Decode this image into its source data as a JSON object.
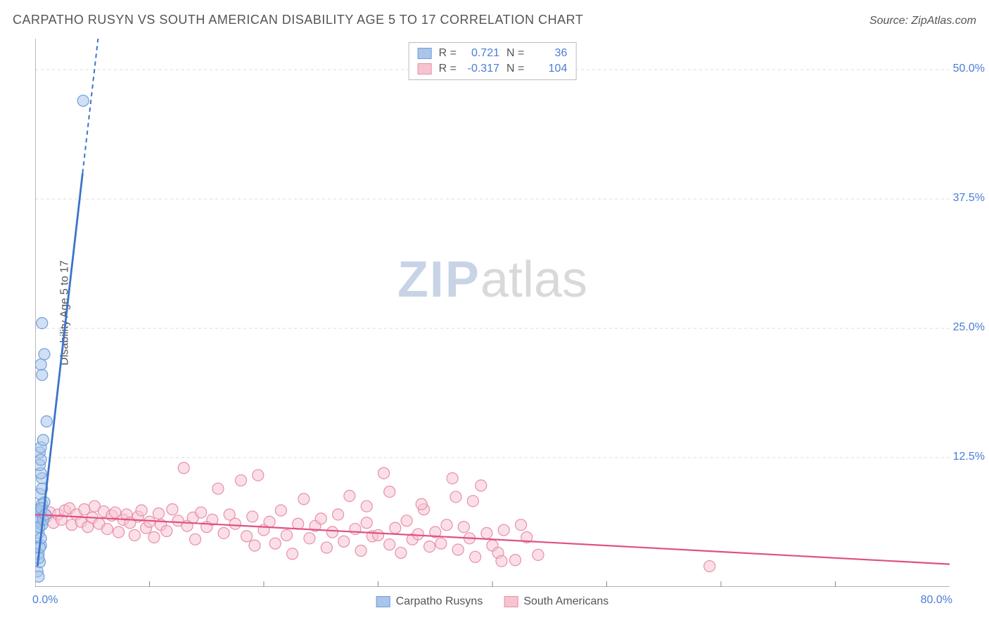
{
  "header": {
    "title": "CARPATHO RUSYN VS SOUTH AMERICAN DISABILITY AGE 5 TO 17 CORRELATION CHART",
    "source": "Source: ZipAtlas.com"
  },
  "axes": {
    "ylabel": "Disability Age 5 to 17",
    "xlim": [
      0,
      80
    ],
    "ylim": [
      0,
      53
    ],
    "yticks": [
      {
        "v": 12.5,
        "label": "12.5%"
      },
      {
        "v": 25.0,
        "label": "25.0%"
      },
      {
        "v": 37.5,
        "label": "37.5%"
      },
      {
        "v": 50.0,
        "label": "50.0%"
      }
    ],
    "xticks_minor": [
      10,
      20,
      30,
      40,
      50,
      60,
      70
    ],
    "xtick_left": "0.0%",
    "xtick_right": "80.0%"
  },
  "grid": {
    "hline_color": "#dcdcdc",
    "hline_dash": "4 4",
    "axis_color": "#888888",
    "tick_color": "#888888"
  },
  "series": {
    "a": {
      "name": "Carpatho Rusyns",
      "fill": "#aac4ea",
      "stroke": "#6f9fdc",
      "line": "#3b74c8",
      "r": 0.721,
      "n": 36,
      "trend": {
        "x1": 0.2,
        "y1": 2,
        "x2": 5.5,
        "y2": 53
      },
      "trend_dash_from_y": 40,
      "points": [
        [
          0.2,
          1.5
        ],
        [
          0.4,
          2.4
        ],
        [
          0.3,
          3.2
        ],
        [
          0.5,
          4.0
        ],
        [
          0.3,
          5.2
        ],
        [
          0.6,
          6.0
        ],
        [
          0.4,
          6.4
        ],
        [
          0.5,
          7.1
        ],
        [
          0.3,
          7.5
        ],
        [
          0.6,
          8.0
        ],
        [
          0.8,
          8.2
        ],
        [
          0.4,
          9.0
        ],
        [
          0.6,
          10.5
        ],
        [
          0.5,
          11.0
        ],
        [
          0.4,
          13.0
        ],
        [
          0.5,
          13.5
        ],
        [
          1.0,
          16.0
        ],
        [
          0.6,
          20.5
        ],
        [
          0.5,
          21.5
        ],
        [
          0.8,
          22.5
        ],
        [
          0.6,
          25.5
        ],
        [
          4.2,
          47.0
        ],
        [
          0.3,
          6.7
        ],
        [
          0.45,
          7.3
        ],
        [
          0.55,
          7.6
        ],
        [
          0.35,
          5.8
        ],
        [
          0.5,
          4.7
        ],
        [
          0.7,
          6.5
        ],
        [
          0.4,
          3.8
        ],
        [
          0.6,
          9.5
        ],
        [
          0.3,
          2.8
        ],
        [
          0.9,
          7.0
        ],
        [
          0.4,
          11.8
        ],
        [
          0.5,
          12.3
        ],
        [
          0.3,
          1.0
        ],
        [
          0.7,
          14.2
        ]
      ]
    },
    "b": {
      "name": "South Americans",
      "fill": "#f6c4d1",
      "stroke": "#e88fa9",
      "line": "#e05085",
      "r": -0.317,
      "n": 104,
      "trend": {
        "x1": 0,
        "y1": 7.0,
        "x2": 80,
        "y2": 2.2
      },
      "points": [
        [
          1,
          6.8
        ],
        [
          1.3,
          7.2
        ],
        [
          1.6,
          6.2
        ],
        [
          2,
          7.0
        ],
        [
          2.3,
          6.5
        ],
        [
          2.6,
          7.4
        ],
        [
          3,
          7.6
        ],
        [
          3.2,
          6.0
        ],
        [
          3.6,
          7.0
        ],
        [
          4,
          6.3
        ],
        [
          4.3,
          7.5
        ],
        [
          4.6,
          5.8
        ],
        [
          5,
          6.7
        ],
        [
          5.2,
          7.8
        ],
        [
          5.6,
          6.1
        ],
        [
          6,
          7.3
        ],
        [
          6.3,
          5.6
        ],
        [
          6.7,
          6.9
        ],
        [
          7,
          7.2
        ],
        [
          7.3,
          5.3
        ],
        [
          7.7,
          6.5
        ],
        [
          8,
          7.0
        ],
        [
          8.3,
          6.2
        ],
        [
          8.7,
          5.0
        ],
        [
          9,
          6.8
        ],
        [
          9.3,
          7.4
        ],
        [
          9.7,
          5.7
        ],
        [
          10,
          6.3
        ],
        [
          10.4,
          4.8
        ],
        [
          10.8,
          7.1
        ],
        [
          11,
          6.0
        ],
        [
          11.5,
          5.4
        ],
        [
          12,
          7.5
        ],
        [
          12.5,
          6.4
        ],
        [
          13,
          11.5
        ],
        [
          13.3,
          5.9
        ],
        [
          13.8,
          6.7
        ],
        [
          14,
          4.6
        ],
        [
          14.5,
          7.2
        ],
        [
          15,
          5.8
        ],
        [
          15.5,
          6.5
        ],
        [
          16,
          9.5
        ],
        [
          16.5,
          5.2
        ],
        [
          17,
          7.0
        ],
        [
          17.5,
          6.1
        ],
        [
          18,
          10.3
        ],
        [
          18.5,
          4.9
        ],
        [
          19,
          6.8
        ],
        [
          19.5,
          10.8
        ],
        [
          20,
          5.5
        ],
        [
          20.5,
          6.3
        ],
        [
          21,
          4.2
        ],
        [
          21.5,
          7.4
        ],
        [
          22,
          5.0
        ],
        [
          22.5,
          3.2
        ],
        [
          23,
          6.1
        ],
        [
          23.5,
          8.5
        ],
        [
          24,
          4.7
        ],
        [
          24.5,
          5.9
        ],
        [
          25,
          6.6
        ],
        [
          25.5,
          3.8
        ],
        [
          26,
          5.3
        ],
        [
          26.5,
          7.0
        ],
        [
          27,
          4.4
        ],
        [
          27.5,
          8.8
        ],
        [
          28,
          5.6
        ],
        [
          28.5,
          3.5
        ],
        [
          29,
          6.2
        ],
        [
          29.5,
          4.9
        ],
        [
          30,
          5.0
        ],
        [
          30.5,
          11.0
        ],
        [
          31,
          4.1
        ],
        [
          31.5,
          5.7
        ],
        [
          32,
          3.3
        ],
        [
          32.5,
          6.4
        ],
        [
          33,
          4.6
        ],
        [
          33.5,
          5.1
        ],
        [
          34,
          7.5
        ],
        [
          34.5,
          3.9
        ],
        [
          35,
          5.3
        ],
        [
          35.5,
          4.2
        ],
        [
          36,
          6.0
        ],
        [
          36.5,
          10.5
        ],
        [
          37,
          3.6
        ],
        [
          37.5,
          5.8
        ],
        [
          38,
          4.7
        ],
        [
          38.5,
          2.9
        ],
        [
          39,
          9.8
        ],
        [
          39.5,
          5.2
        ],
        [
          40,
          4.0
        ],
        [
          40.5,
          3.3
        ],
        [
          41,
          5.5
        ],
        [
          42,
          2.6
        ],
        [
          43,
          4.8
        ],
        [
          44,
          3.1
        ],
        [
          36.8,
          8.7
        ],
        [
          38.3,
          8.3
        ],
        [
          40.8,
          2.5
        ],
        [
          42.5,
          6.0
        ],
        [
          59,
          2.0
        ],
        [
          29,
          7.8
        ],
        [
          31,
          9.2
        ],
        [
          33.8,
          8.0
        ],
        [
          19.2,
          4.0
        ]
      ]
    }
  },
  "watermark": {
    "bold": "ZIP",
    "light": "atlas"
  },
  "colors": {
    "text_blue": "#4a7dd6",
    "text_gray": "#555555"
  },
  "marker": {
    "radius": 8,
    "stroke_width": 1.2,
    "fill_opacity": 0.55
  }
}
